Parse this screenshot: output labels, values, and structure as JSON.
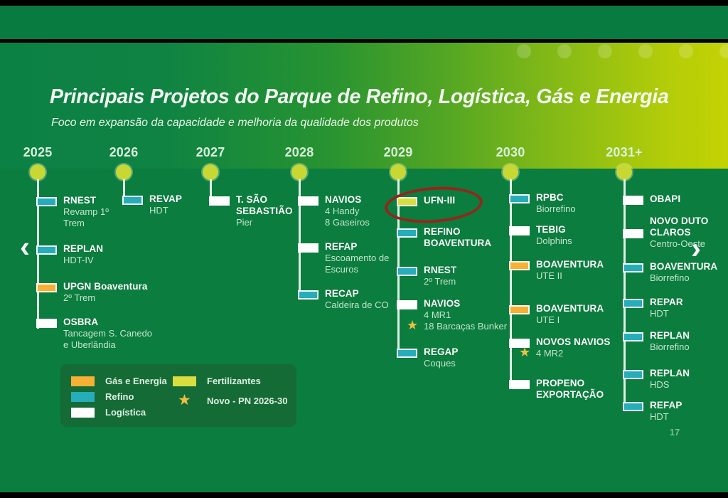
{
  "slide": {
    "title": "Principais Projetos do Parque de Refino, Logística, Gás e Energia",
    "subtitle": "Foco em expansão da capacidade e melhoria da qualidade dos produtos",
    "page_number": "17"
  },
  "nav": {
    "prev_label": "‹",
    "next_label": "›"
  },
  "colors": {
    "gas_energia": "#f6b033",
    "refino": "#26adb9",
    "logistica": "#ffffff",
    "fertilizantes": "#d9de3f",
    "star": "#eec041",
    "timeline_dot": "#c8d832",
    "annotation_red": "#94261b"
  },
  "legend": {
    "items": [
      {
        "key": "gas_energia",
        "label": "Gás e Energia"
      },
      {
        "key": "refino",
        "label": "Refino"
      },
      {
        "key": "logistica",
        "label": "Logística"
      },
      {
        "key": "fertilizantes",
        "label": "Fertilizantes"
      }
    ],
    "star_label": "Novo - PN 2026-30"
  },
  "timeline": {
    "columns": [
      {
        "year": "2025",
        "items": [
          {
            "type": "refino",
            "name": [
              "RNEST"
            ],
            "subs": [
              {
                "t": "Revamp 1º"
              },
              {
                "t": "Trem"
              }
            ]
          },
          {
            "type": "refino",
            "name": [
              "REPLAN"
            ],
            "subs": [
              {
                "t": "HDT-IV"
              }
            ]
          },
          {
            "type": "gas_energia",
            "name": [
              "UPGN Boaventura"
            ],
            "subs": [
              {
                "t": "2º Trem"
              }
            ]
          },
          {
            "type": "logistica",
            "name": [
              "OSBRA"
            ],
            "subs": [
              {
                "t": "Tancagem S. Canedo"
              },
              {
                "t": "e Uberlândia"
              }
            ]
          }
        ]
      },
      {
        "year": "2026",
        "items": [
          {
            "type": "refino",
            "name": [
              "REVAP"
            ],
            "subs": [
              {
                "t": "HDT"
              }
            ]
          }
        ]
      },
      {
        "year": "2027",
        "items": [
          {
            "type": "logistica",
            "name": [
              "T. SÃO",
              "SEBASTIÃO"
            ],
            "subs": [
              {
                "t": "Pier"
              }
            ]
          }
        ]
      },
      {
        "year": "2028",
        "items": [
          {
            "type": "logistica",
            "name": [
              "NAVIOS"
            ],
            "subs": [
              {
                "t": "4 Handy"
              },
              {
                "t": "8 Gaseiros"
              }
            ]
          },
          {
            "type": "logistica",
            "name": [
              "REFAP"
            ],
            "subs": [
              {
                "t": "Escoamento de"
              },
              {
                "t": "Escuros"
              }
            ]
          },
          {
            "type": "refino",
            "name": [
              "RECAP"
            ],
            "subs": [
              {
                "t": "Caldeira de CO"
              }
            ]
          }
        ]
      },
      {
        "year": "2029",
        "items": [
          {
            "type": "fertilizantes",
            "name": [
              "UFN-III"
            ],
            "subs": [],
            "circled": true
          },
          {
            "type": "refino",
            "name": [
              "REFINO",
              "BOAVENTURA"
            ],
            "subs": []
          },
          {
            "type": "refino",
            "name": [
              "RNEST"
            ],
            "subs": [
              {
                "t": "2º Trem"
              }
            ]
          },
          {
            "type": "logistica",
            "name": [
              "NAVIOS"
            ],
            "subs": [
              {
                "t": "4 MR1"
              },
              {
                "t": "18 Barcaças Bunker",
                "star": true
              }
            ]
          },
          {
            "type": "refino",
            "name": [
              "REGAP"
            ],
            "subs": [
              {
                "t": "Coques"
              }
            ]
          }
        ]
      },
      {
        "year": "2030",
        "items": [
          {
            "type": "refino",
            "name": [
              "RPBC"
            ],
            "subs": [
              {
                "t": "Biorrefino"
              }
            ]
          },
          {
            "type": "logistica",
            "name": [
              "TEBIG"
            ],
            "subs": [
              {
                "t": "Dolphins"
              }
            ]
          },
          {
            "type": "gas_energia",
            "name": [
              "BOAVENTURA"
            ],
            "subs": [
              {
                "t": "UTE II"
              }
            ]
          },
          {
            "type": "gas_energia",
            "name": [
              "BOAVENTURA"
            ],
            "subs": [
              {
                "t": "UTE I"
              }
            ]
          },
          {
            "type": "logistica",
            "name": [
              "NOVOS NAVIOS"
            ],
            "subs": [
              {
                "t": "4 MR2",
                "star": true
              }
            ]
          },
          {
            "type": "logistica",
            "name": [
              "PROPENO",
              "EXPORTAÇÃO"
            ],
            "subs": []
          }
        ]
      },
      {
        "year": "2031+",
        "items": [
          {
            "type": "logistica",
            "name": [
              "OBAPI"
            ],
            "subs": []
          },
          {
            "type": "logistica",
            "name": [
              "NOVO DUTO",
              "CLAROS"
            ],
            "subs": [
              {
                "t": "Centro-Oeste"
              }
            ]
          },
          {
            "type": "refino",
            "name": [
              "BOAVENTURA"
            ],
            "subs": [
              {
                "t": "Biorrefino"
              }
            ]
          },
          {
            "type": "refino",
            "name": [
              "REPAR"
            ],
            "subs": [
              {
                "t": "HDT"
              }
            ]
          },
          {
            "type": "refino",
            "name": [
              "REPLAN"
            ],
            "subs": [
              {
                "t": "Biorrefino"
              }
            ]
          },
          {
            "type": "refino",
            "name": [
              "REPLAN"
            ],
            "subs": [
              {
                "t": "HDS"
              }
            ]
          },
          {
            "type": "refino",
            "name": [
              "REFAP"
            ],
            "subs": [
              {
                "t": "HDT"
              }
            ]
          }
        ]
      }
    ]
  }
}
